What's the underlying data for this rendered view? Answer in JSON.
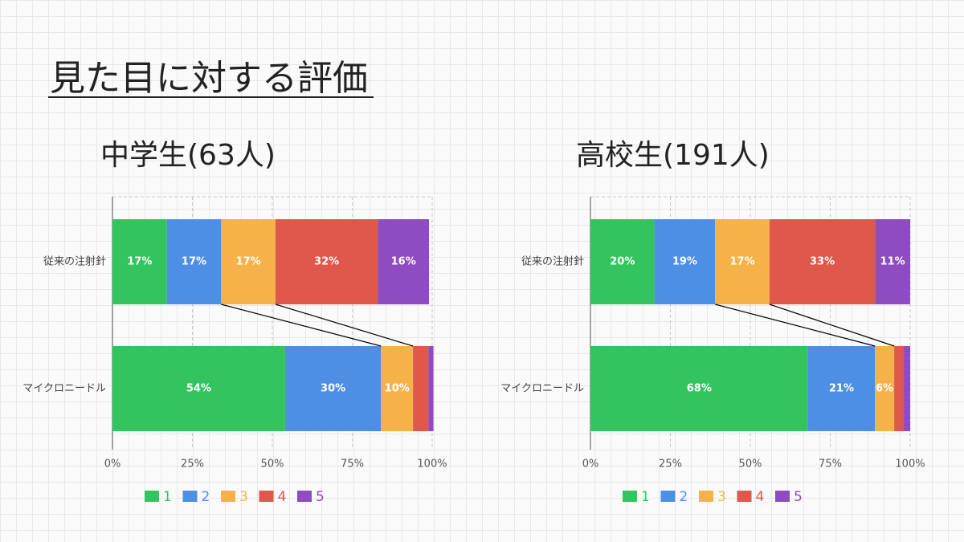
{
  "title": "見た目に対する評価",
  "chart_data": [
    {
      "type": "bar",
      "orientation": "horizontal",
      "stacked": true,
      "title": "中学生(63人)",
      "categories": [
        "従来の注射針",
        "マイクロニードル"
      ],
      "series": [
        {
          "name": "1",
          "color": "#33c45f",
          "values": [
            17,
            54
          ],
          "value_labels": [
            "17%",
            "54%"
          ]
        },
        {
          "name": "2",
          "color": "#4e8fe6",
          "values": [
            17,
            30
          ],
          "value_labels": [
            "17%",
            "30%"
          ]
        },
        {
          "name": "3",
          "color": "#f5b249",
          "values": [
            17,
            10
          ],
          "value_labels": [
            "17%",
            "10%"
          ]
        },
        {
          "name": "4",
          "color": "#e0574c",
          "values": [
            32,
            4.8
          ],
          "value_labels": [
            "32%",
            null
          ]
        },
        {
          "name": "5",
          "color": "#8e4cc0",
          "values": [
            16,
            1.6
          ],
          "value_labels": [
            "16%",
            null
          ]
        }
      ],
      "xlim": [
        0,
        100
      ],
      "xticks": [
        {
          "value": 0,
          "label": "0%"
        },
        {
          "value": 25,
          "label": "25%"
        },
        {
          "value": 50,
          "label": "50%"
        },
        {
          "value": 75,
          "label": "75%"
        },
        {
          "value": 100,
          "label": "100%"
        }
      ],
      "grid": true
    },
    {
      "type": "bar",
      "orientation": "horizontal",
      "stacked": true,
      "title": "高校生(191人)",
      "categories": [
        "従来の注射針",
        "マイクロニードル"
      ],
      "series": [
        {
          "name": "1",
          "color": "#33c45f",
          "values": [
            20,
            68
          ],
          "value_labels": [
            "20%",
            "68%"
          ]
        },
        {
          "name": "2",
          "color": "#4e8fe6",
          "values": [
            19,
            21
          ],
          "value_labels": [
            "19%",
            "21%"
          ]
        },
        {
          "name": "3",
          "color": "#f5b249",
          "values": [
            17,
            6
          ],
          "value_labels": [
            "17%",
            "6%"
          ]
        },
        {
          "name": "4",
          "color": "#e0574c",
          "values": [
            33,
            3
          ],
          "value_labels": [
            "33%",
            null
          ]
        },
        {
          "name": "5",
          "color": "#8e4cc0",
          "values": [
            11,
            2
          ],
          "value_labels": [
            "11%",
            null
          ]
        }
      ],
      "xlim": [
        0,
        100
      ],
      "xticks": [
        {
          "value": 0,
          "label": "0%"
        },
        {
          "value": 25,
          "label": "25%"
        },
        {
          "value": 50,
          "label": "50%"
        },
        {
          "value": 75,
          "label": "75%"
        },
        {
          "value": 100,
          "label": "100%"
        }
      ],
      "grid": true
    }
  ]
}
